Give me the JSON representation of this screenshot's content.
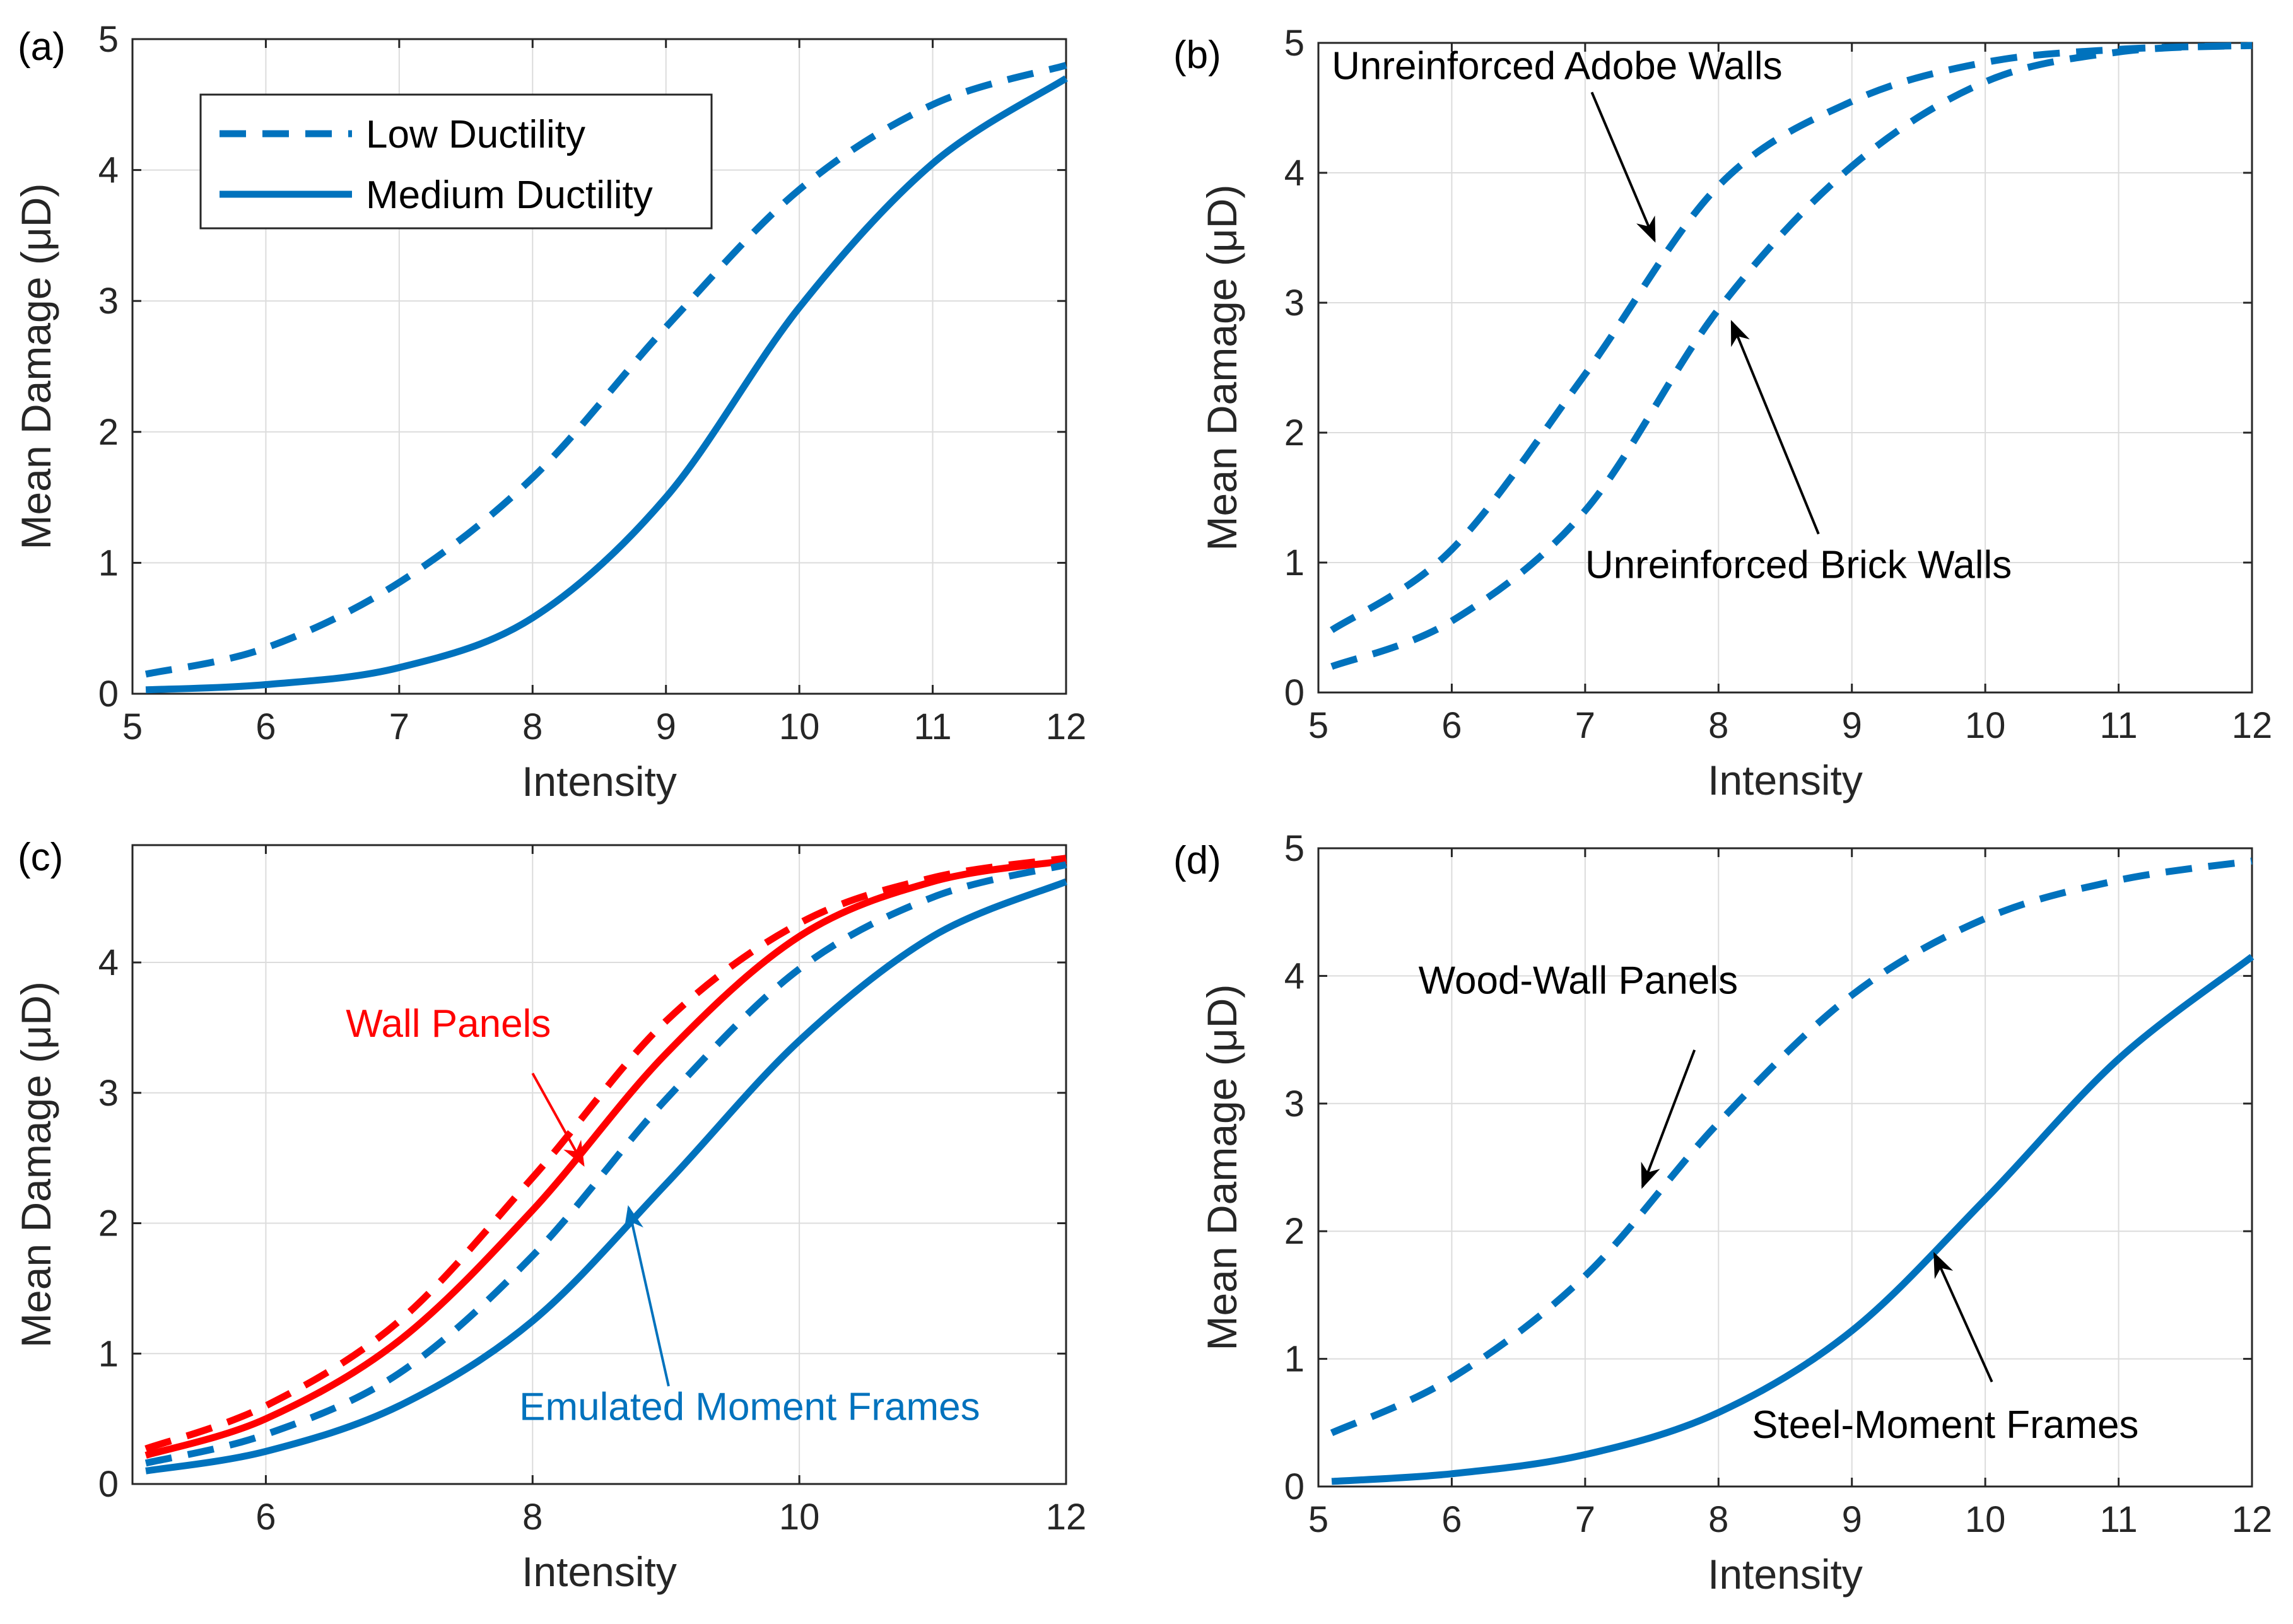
{
  "figure": {
    "colors": {
      "blue": "#0072BD",
      "red": "#FF0000",
      "grid": "#DCDCDC",
      "axis": "#262626",
      "annot_black": "#000000"
    }
  },
  "chart_data": [
    {
      "panel": "(a)",
      "type": "line",
      "title": "",
      "xlabel": "Intensity",
      "ylabel": "Mean Damage (μD)",
      "xlim": [
        5,
        12
      ],
      "ylim": [
        0,
        5
      ],
      "xticks": [
        5,
        6,
        7,
        8,
        9,
        10,
        11,
        12
      ],
      "yticks": [
        0,
        1,
        2,
        3,
        4,
        5
      ],
      "grid": true,
      "legend": {
        "location": "top-left",
        "entries": [
          "Low Ductility",
          "Medium Ductility"
        ]
      },
      "series": [
        {
          "name": "Low Ductility",
          "style": "dashed",
          "color": "#0072BD",
          "x": [
            5.1,
            6,
            7,
            8,
            9,
            10,
            11,
            12
          ],
          "y": [
            0.15,
            0.35,
            0.85,
            1.65,
            2.8,
            3.85,
            4.5,
            4.8
          ]
        },
        {
          "name": "Medium Ductility",
          "style": "solid",
          "color": "#0072BD",
          "x": [
            5.1,
            6,
            7,
            8,
            9,
            10,
            11,
            12
          ],
          "y": [
            0.03,
            0.07,
            0.2,
            0.58,
            1.5,
            2.95,
            4.05,
            4.7
          ]
        }
      ],
      "annotations": []
    },
    {
      "panel": "(b)",
      "type": "line",
      "title": "",
      "xlabel": "Intensity",
      "ylabel": "Mean Damage (μD)",
      "xlim": [
        5,
        12
      ],
      "ylim": [
        0,
        5
      ],
      "xticks": [
        5,
        6,
        7,
        8,
        9,
        10,
        11,
        12
      ],
      "yticks": [
        0,
        1,
        2,
        3,
        4,
        5
      ],
      "grid": true,
      "legend": null,
      "series": [
        {
          "name": "Unreinforced Adobe Walls",
          "style": "dashed",
          "color": "#0072BD",
          "x": [
            5.1,
            6,
            7,
            8,
            9,
            10,
            11,
            12
          ],
          "y": [
            0.48,
            1.1,
            2.45,
            3.9,
            4.55,
            4.85,
            4.95,
            4.98
          ]
        },
        {
          "name": "Unreinforced Brick Walls",
          "style": "dashed",
          "color": "#0072BD",
          "x": [
            5.1,
            6,
            7,
            8,
            9,
            10,
            11,
            12
          ],
          "y": [
            0.2,
            0.55,
            1.4,
            2.95,
            4.05,
            4.7,
            4.93,
            4.98
          ]
        }
      ],
      "annotations": [
        {
          "text": "Unreinforced Adobe Walls",
          "color": "#000000",
          "tx": 5.1,
          "ty": 4.72,
          "anchor": "start",
          "from": [
            7.05,
            4.62
          ],
          "to": [
            7.52,
            3.48
          ]
        },
        {
          "text": "Unreinforced Brick Walls",
          "color": "#000000",
          "tx": 7.0,
          "ty": 0.88,
          "anchor": "start",
          "from": [
            8.75,
            1.22
          ],
          "to": [
            8.1,
            2.85
          ]
        }
      ]
    },
    {
      "panel": "(c)",
      "type": "line",
      "title": "",
      "xlabel": "Intensity",
      "ylabel": "Mean Damage (μD)",
      "xlim": [
        5,
        12
      ],
      "ylim": [
        0,
        4.9
      ],
      "xticks": [
        6,
        8,
        10,
        12
      ],
      "yticks": [
        0,
        1,
        2,
        3,
        4
      ],
      "grid": true,
      "legend": null,
      "series": [
        {
          "name": "Wall Panels (dashed)",
          "style": "dashed",
          "color": "#FF0000",
          "x": [
            5.1,
            6,
            7,
            8,
            9,
            10,
            11,
            12
          ],
          "y": [
            0.27,
            0.6,
            1.25,
            2.35,
            3.55,
            4.3,
            4.65,
            4.8
          ]
        },
        {
          "name": "Wall Panels (solid)",
          "style": "solid",
          "color": "#FF0000",
          "x": [
            5.1,
            6,
            7,
            8,
            9,
            10,
            11,
            12
          ],
          "y": [
            0.22,
            0.5,
            1.1,
            2.1,
            3.3,
            4.2,
            4.62,
            4.78
          ]
        },
        {
          "name": "Emulated Moment Frames (dashed)",
          "style": "dashed",
          "color": "#0072BD",
          "x": [
            5.1,
            6,
            7,
            8,
            9,
            10,
            11,
            12
          ],
          "y": [
            0.16,
            0.38,
            0.85,
            1.75,
            2.95,
            3.95,
            4.5,
            4.75
          ]
        },
        {
          "name": "Emulated Moment Frames (solid)",
          "style": "solid",
          "color": "#0072BD",
          "x": [
            5.1,
            6,
            7,
            8,
            9,
            10,
            11,
            12
          ],
          "y": [
            0.1,
            0.25,
            0.6,
            1.25,
            2.3,
            3.4,
            4.2,
            4.62
          ]
        }
      ],
      "annotations": [
        {
          "text": "Wall Panels",
          "color": "#FF0000",
          "tx": 6.6,
          "ty": 3.43,
          "anchor": "start",
          "from": [
            8.0,
            3.15
          ],
          "to": [
            8.38,
            2.45
          ]
        },
        {
          "text": "Emulated Moment Frames",
          "color": "#0072BD",
          "tx": 7.9,
          "ty": 0.49,
          "anchor": "start",
          "from": [
            9.02,
            0.75
          ],
          "to": [
            8.72,
            2.12
          ]
        }
      ]
    },
    {
      "panel": "(d)",
      "type": "line",
      "title": "",
      "xlabel": "Intensity",
      "ylabel": "Mean Damage (μD)",
      "xlim": [
        5,
        12
      ],
      "ylim": [
        0,
        5
      ],
      "xticks": [
        5,
        6,
        7,
        8,
        9,
        10,
        11,
        12
      ],
      "yticks": [
        0,
        1,
        2,
        3,
        4,
        5
      ],
      "grid": true,
      "legend": null,
      "series": [
        {
          "name": "Wood-Wall Panels",
          "style": "dashed",
          "color": "#0072BD",
          "x": [
            5.1,
            6,
            7,
            8,
            9,
            10,
            11,
            12
          ],
          "y": [
            0.42,
            0.85,
            1.65,
            2.85,
            3.85,
            4.45,
            4.75,
            4.9
          ]
        },
        {
          "name": "Steel-Moment Frames",
          "style": "solid",
          "color": "#0072BD",
          "x": [
            5.1,
            6,
            7,
            8,
            9,
            10,
            11,
            12
          ],
          "y": [
            0.04,
            0.1,
            0.25,
            0.58,
            1.22,
            2.25,
            3.35,
            4.15
          ]
        }
      ],
      "annotations": [
        {
          "text": "Wood-Wall Panels",
          "color": "#000000",
          "tx": 5.75,
          "ty": 3.86,
          "anchor": "start",
          "from": [
            7.82,
            3.42
          ],
          "to": [
            7.43,
            2.35
          ]
        },
        {
          "text": "Steel-Moment Frames",
          "color": "#000000",
          "tx": 8.25,
          "ty": 0.38,
          "anchor": "start",
          "from": [
            10.05,
            0.82
          ],
          "to": [
            9.62,
            1.82
          ]
        }
      ]
    }
  ]
}
